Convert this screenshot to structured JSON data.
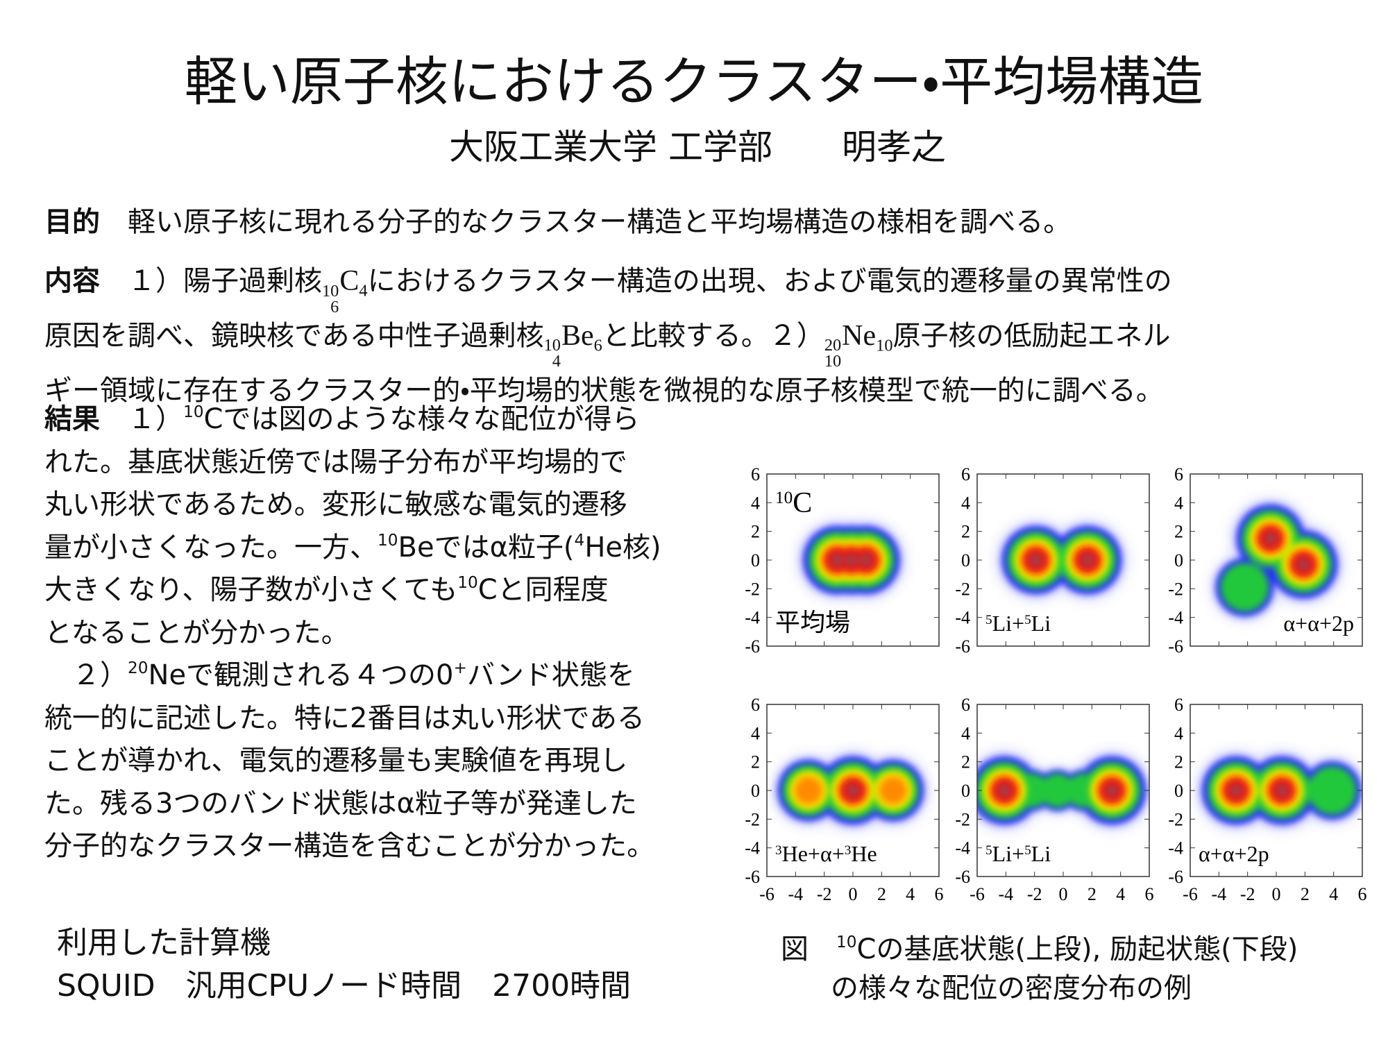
{
  "header": {
    "title": "軽い原子核におけるクラスター・平均場構造",
    "subtitle": "大阪工業大学 工学部　　明孝之"
  },
  "purpose": {
    "heading": "目的",
    "lines": [
      [
        {
          "t": "　軽い原子核に現れる分子的なクラスター構造と平均場構造の様相を調べる。"
        }
      ]
    ]
  },
  "content": {
    "heading": "内容",
    "lines": [
      [
        {
          "t": "　１）陽子過剰核"
        },
        {
          "nuc": {
            "a": "10",
            "z": "6",
            "sym": "C",
            "n": "4"
          }
        },
        {
          "t": "におけるクラスター構造の出現、および電気的遷移量の異常性の"
        }
      ],
      [
        {
          "t": "原因を調べ、鏡映核である中性子過剰核"
        },
        {
          "nuc": {
            "a": "10",
            "z": "4",
            "sym": "Be",
            "n": "6"
          }
        },
        {
          "t": "と比較する。２）"
        },
        {
          "nuc": {
            "a": "20",
            "z": "10",
            "sym": "Ne",
            "n": "10"
          }
        },
        {
          "t": "原子核の低励起エネル"
        }
      ],
      [
        {
          "t": "ギー領域に存在するクラスター的・平均場的状態を微視的な原子核模型で統一的に調べる。"
        }
      ]
    ]
  },
  "results": {
    "heading": "結果",
    "lines": [
      [
        {
          "t": "　１）"
        },
        {
          "sup": "10"
        },
        {
          "t": "Cでは図のような様々な配位が得ら"
        }
      ],
      [
        {
          "t": "れた。基底状態近傍では陽子分布が平均場的で"
        }
      ],
      [
        {
          "t": "丸い形状であるため。変形に敏感な電気的遷移"
        }
      ],
      [
        {
          "t": "量が小さくなった。一方、"
        },
        {
          "sup": "10"
        },
        {
          "t": "Beではα粒子("
        },
        {
          "sup": "4"
        },
        {
          "t": "He核)"
        }
      ],
      [
        {
          "t": "大きくなり、陽子数が小さくても"
        },
        {
          "sup": "10"
        },
        {
          "t": "Cと同程度"
        }
      ],
      [
        {
          "t": "となることが分かった。"
        }
      ],
      [
        {
          "t": "　２）"
        },
        {
          "sup": "20"
        },
        {
          "t": "Neで観測される４つの0"
        },
        {
          "sup": "+"
        },
        {
          "t": "バンド状態を"
        }
      ],
      [
        {
          "t": "統一的に記述した。特に2番目は丸い形状である"
        }
      ],
      [
        {
          "t": "ことが導かれ、電気的遷移量も実験値を再現し"
        }
      ],
      [
        {
          "t": "た。残る3つのバンド状態はα粒子等が発達した"
        }
      ],
      [
        {
          "t": "分子的なクラスター構造を含むことが分かった。"
        }
      ]
    ]
  },
  "computer": {
    "lines": [
      "利用した計算機",
      "SQUID　汎用CPUノード時間　2700時間"
    ]
  },
  "figure": {
    "range": [
      -6,
      6
    ],
    "ticks": [
      -6,
      -4,
      -2,
      0,
      2,
      4,
      6
    ],
    "panels": [
      {
        "corner_label": [
          {
            "sup": "10"
          },
          {
            "t": "C"
          }
        ],
        "label": [
          {
            "t": "平均場"
          }
        ]
      },
      {
        "label": [
          {
            "sup": "5"
          },
          {
            "t": "Li+"
          },
          {
            "sup": "5"
          },
          {
            "t": "Li"
          }
        ]
      },
      {
        "label": [
          {
            "t": "α+α+2p"
          }
        ]
      },
      {
        "label": [
          {
            "sup": "3"
          },
          {
            "t": "He+α+"
          },
          {
            "sup": "3"
          },
          {
            "t": "He"
          }
        ]
      },
      {
        "label": [
          {
            "sup": "5"
          },
          {
            "t": "Li+"
          },
          {
            "sup": "5"
          },
          {
            "t": "Li"
          }
        ]
      },
      {
        "label": [
          {
            "t": "α+α+2p"
          }
        ]
      }
    ],
    "caption": [
      [
        {
          "t": "図　"
        },
        {
          "sup": "10"
        },
        {
          "t": "Cの基底状態(上段), 励起状態(下段)"
        }
      ],
      [
        {
          "t": "の様々な配位の密度分布の例"
        }
      ]
    ]
  }
}
